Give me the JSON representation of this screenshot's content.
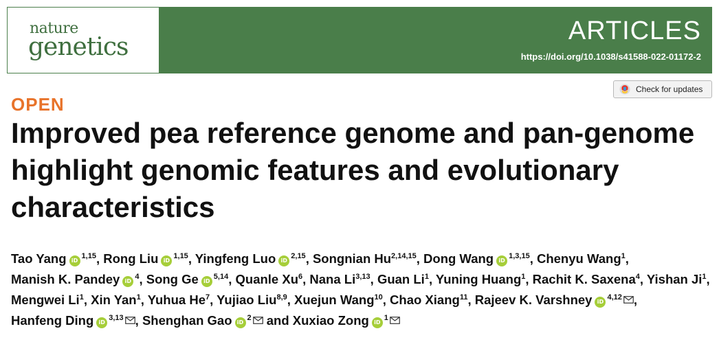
{
  "header": {
    "logo_line1": "nature",
    "logo_line2": "genetics",
    "section": "ARTICLES",
    "doi": "https://doi.org/10.1038/s41588-022-01172-2",
    "colors": {
      "banner": "#4a7e4a",
      "logo_text": "#3f6f3f"
    }
  },
  "check_updates": {
    "label": "Check for updates",
    "icon": "crossmark-icon"
  },
  "open_label": "OPEN",
  "open_color": "#e8732a",
  "title": "Improved pea reference genome and pan-genome highlight genomic features and evolutionary characteristics",
  "authors": [
    {
      "name": "Tao Yang",
      "orcid": true,
      "sup": "1,15",
      "mail": false,
      "sep": ", "
    },
    {
      "name": "Rong Liu",
      "orcid": true,
      "sup": "1,15",
      "mail": false,
      "sep": ", "
    },
    {
      "name": "Yingfeng Luo",
      "orcid": true,
      "sup": "2,15",
      "mail": false,
      "sep": ", "
    },
    {
      "name": "Songnian Hu",
      "orcid": false,
      "sup": "2,14,15",
      "mail": false,
      "sep": ", "
    },
    {
      "name": "Dong Wang",
      "orcid": true,
      "sup": "1,3,15",
      "mail": false,
      "sep": ", "
    },
    {
      "name": "Chenyu Wang",
      "orcid": false,
      "sup": "1",
      "mail": false,
      "sep": ", "
    },
    {
      "name": "Manish K. Pandey",
      "orcid": true,
      "sup": "4",
      "mail": false,
      "sep": ", "
    },
    {
      "name": "Song Ge",
      "orcid": true,
      "sup": "5,14",
      "mail": false,
      "sep": ", "
    },
    {
      "name": "Quanle Xu",
      "orcid": false,
      "sup": "6",
      "mail": false,
      "sep": ", "
    },
    {
      "name": "Nana Li",
      "orcid": false,
      "sup": "3,13",
      "mail": false,
      "sep": ", "
    },
    {
      "name": "Guan Li",
      "orcid": false,
      "sup": "1",
      "mail": false,
      "sep": ", "
    },
    {
      "name": "Yuning Huang",
      "orcid": false,
      "sup": "1",
      "mail": false,
      "sep": ", "
    },
    {
      "name": "Rachit K. Saxena",
      "orcid": false,
      "sup": "4",
      "mail": false,
      "sep": ", "
    },
    {
      "name": "Yishan Ji",
      "orcid": false,
      "sup": "1",
      "mail": false,
      "sep": ", "
    },
    {
      "name": "Mengwei Li",
      "orcid": false,
      "sup": "1",
      "mail": false,
      "sep": ", "
    },
    {
      "name": "Xin Yan",
      "orcid": false,
      "sup": "1",
      "mail": false,
      "sep": ", "
    },
    {
      "name": "Yuhua He",
      "orcid": false,
      "sup": "7",
      "mail": false,
      "sep": ", "
    },
    {
      "name": "Yujiao Liu",
      "orcid": false,
      "sup": "8,9",
      "mail": false,
      "sep": ", "
    },
    {
      "name": "Xuejun Wang",
      "orcid": false,
      "sup": "10",
      "mail": false,
      "sep": ", "
    },
    {
      "name": "Chao Xiang",
      "orcid": false,
      "sup": "11",
      "mail": false,
      "sep": ", "
    },
    {
      "name": "Rajeev K. Varshney",
      "orcid": true,
      "sup": "4,12",
      "mail": true,
      "sep": ", "
    },
    {
      "name": "Hanfeng Ding",
      "orcid": true,
      "sup": "3,13",
      "mail": true,
      "sep": ", "
    },
    {
      "name": "Shenghan Gao",
      "orcid": true,
      "sup": "2",
      "mail": true,
      "sep": " and "
    },
    {
      "name": "Xuxiao Zong",
      "orcid": true,
      "sup": "1",
      "mail": true,
      "sep": ""
    }
  ]
}
